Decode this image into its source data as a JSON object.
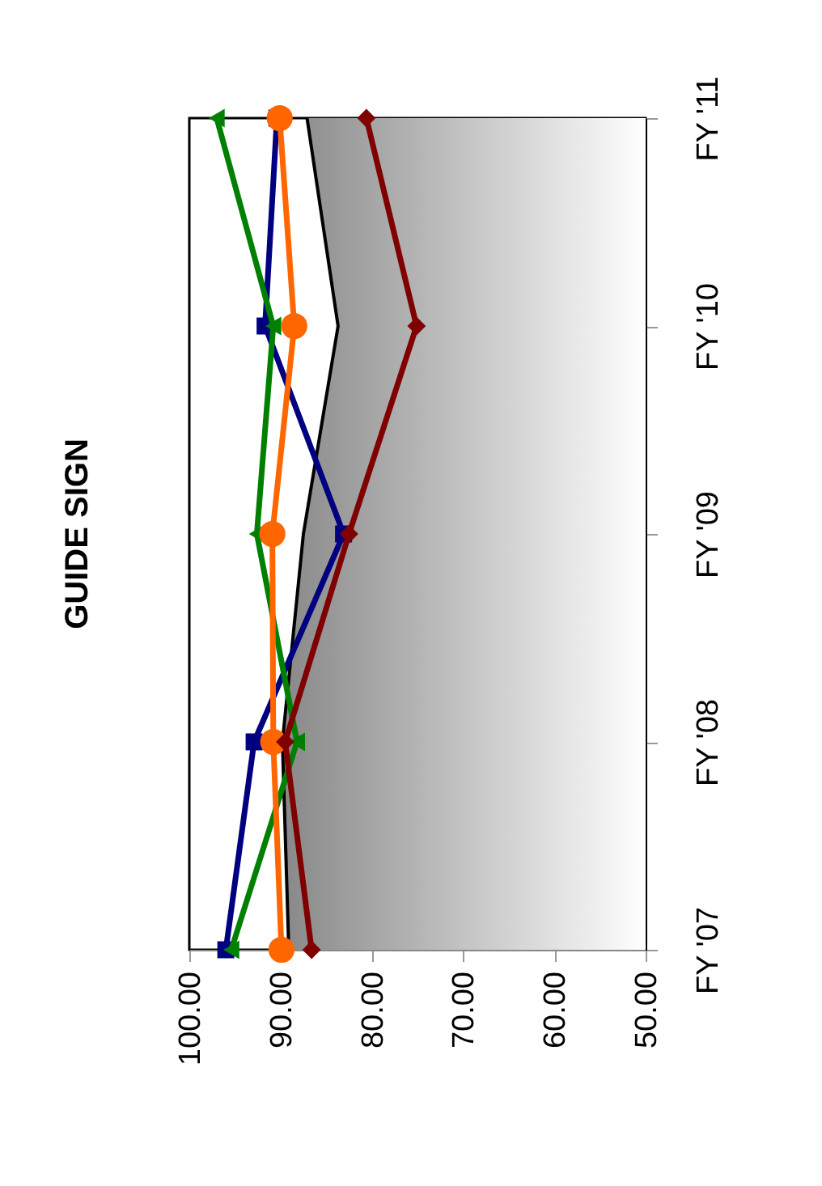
{
  "chart_data": {
    "type": "line",
    "title": "GUIDE SIGN",
    "orientation": "horizontal",
    "categories": [
      "FY '11",
      "FY '10",
      "FY '09",
      "FY '08",
      "FY '07"
    ],
    "series": [
      {
        "type": "area",
        "color": "#888888",
        "values": [
          87.1,
          83.7,
          87.5,
          89.8,
          89.1
        ]
      },
      {
        "color": "#000080",
        "marker": "square",
        "values": [
          90.4,
          91.7,
          83.1,
          92.9,
          96.0
        ]
      },
      {
        "color": "#008000",
        "marker": "triangle",
        "values": [
          97.0,
          90.8,
          92.6,
          88.2,
          95.4
        ]
      },
      {
        "color": "#ff6600",
        "marker": "circle",
        "values": [
          90.1,
          88.5,
          90.9,
          90.8,
          89.9
        ]
      },
      {
        "color": "#800000",
        "marker": "diamond",
        "values": [
          80.6,
          75.1,
          82.5,
          89.5,
          86.6
        ]
      }
    ],
    "xlim": [
      100,
      50
    ],
    "xticks": [
      {
        "value": 100,
        "label": "100.00"
      },
      {
        "value": 90,
        "label": "90.00"
      },
      {
        "value": 80,
        "label": "80.00"
      },
      {
        "value": 70,
        "label": "70.00"
      },
      {
        "value": 60,
        "label": "60.00"
      },
      {
        "value": 50,
        "label": "50.00"
      }
    ]
  }
}
